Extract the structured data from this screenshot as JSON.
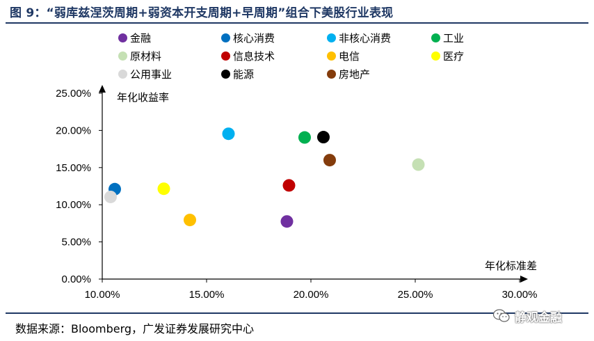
{
  "title": "图 9：“弱库兹涅茨周期+弱资本开支周期+早周期”组合下美股行业表现",
  "source": "数据来源：Bloomberg，广发证券发展研究中心",
  "watermark": "静观金融",
  "chart_data": {
    "type": "scatter",
    "xlabel": "年化标准差",
    "ylabel": "年化收益率",
    "xlim": [
      0.1,
      0.3
    ],
    "ylim": [
      0.0,
      0.25
    ],
    "x_ticks": [
      "10.00%",
      "15.00%",
      "20.00%",
      "25.00%",
      "30.00%"
    ],
    "y_ticks": [
      "0.00%",
      "5.00%",
      "10.00%",
      "15.00%",
      "20.00%",
      "25.00%"
    ],
    "legend_placement": "top",
    "grid": false,
    "series": [
      {
        "name": "金融",
        "color": "#7030a0",
        "x": 0.1885,
        "y": 0.0775
      },
      {
        "name": "核心消费",
        "color": "#0070c0",
        "x": 0.106,
        "y": 0.121
      },
      {
        "name": "非核心消费",
        "color": "#00b0f0",
        "x": 0.1605,
        "y": 0.1955
      },
      {
        "name": "工业",
        "color": "#00b050",
        "x": 0.197,
        "y": 0.1905
      },
      {
        "name": "原材料",
        "color": "#c5e0b4",
        "x": 0.2515,
        "y": 0.154
      },
      {
        "name": "信息技术",
        "color": "#c00000",
        "x": 0.1895,
        "y": 0.126
      },
      {
        "name": "电信",
        "color": "#ffc000",
        "x": 0.142,
        "y": 0.0795
      },
      {
        "name": "医疗",
        "color": "#ffff00",
        "x": 0.1295,
        "y": 0.1215
      },
      {
        "name": "公用事业",
        "color": "#d9d9d9",
        "x": 0.104,
        "y": 0.1105
      },
      {
        "name": "能源",
        "color": "#000000",
        "x": 0.206,
        "y": 0.191
      },
      {
        "name": "房地产",
        "color": "#843c0c",
        "x": 0.209,
        "y": 0.16
      }
    ]
  }
}
